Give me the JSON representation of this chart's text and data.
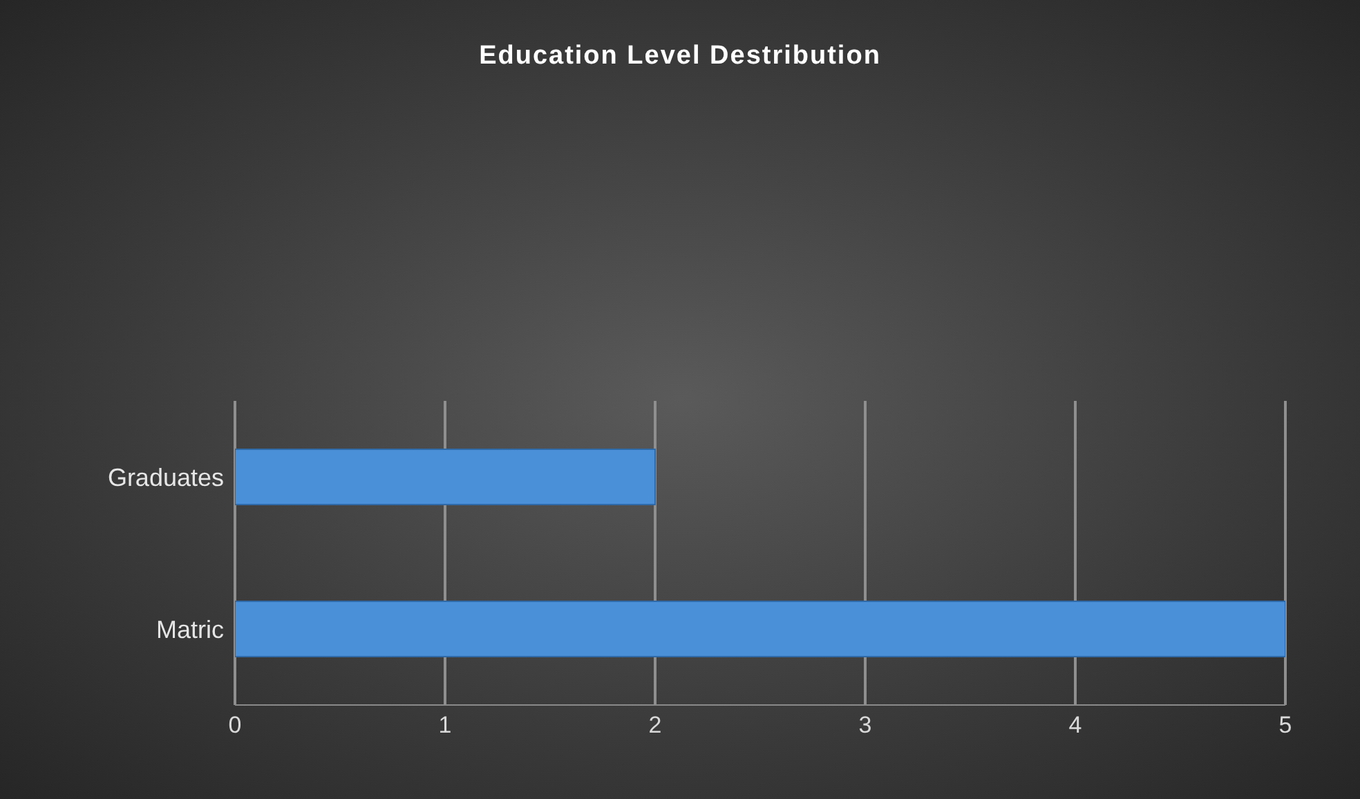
{
  "chart_data": {
    "type": "bar",
    "orientation": "horizontal",
    "title": "Education Level Destribution",
    "categories": [
      "Graduates",
      "Matric"
    ],
    "values": [
      2,
      5
    ],
    "color": "#4a90d9",
    "xlim": [
      0,
      5
    ],
    "xticks": [
      0,
      1,
      2,
      3,
      4,
      5
    ],
    "grid": "x"
  }
}
